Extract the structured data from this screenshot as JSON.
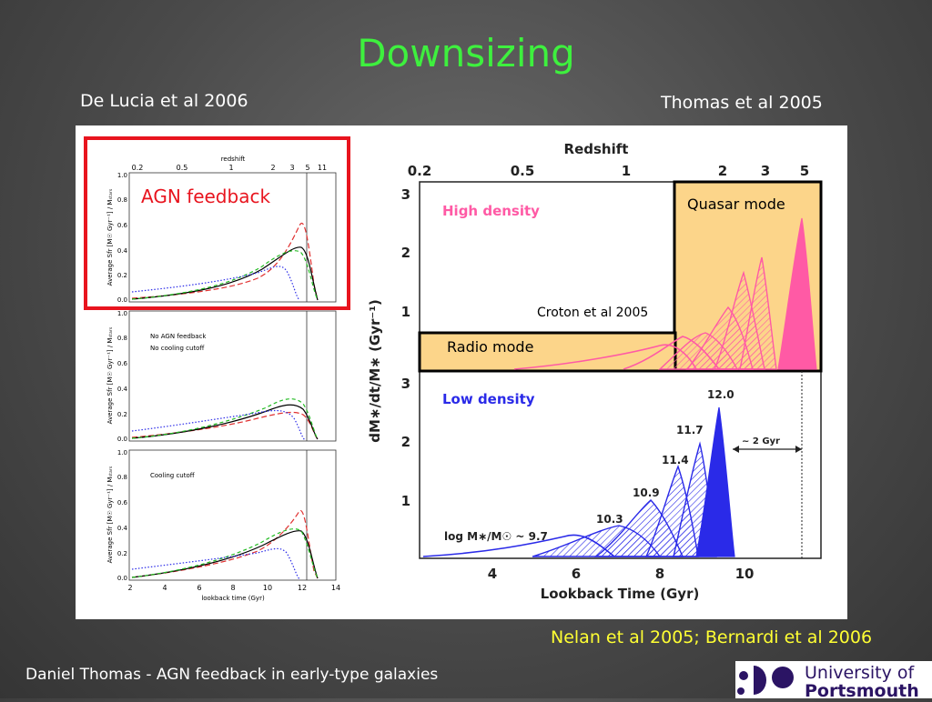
{
  "slide": {
    "title": "Downsizing",
    "left_citation": "De Lucia et al 2006",
    "right_citation": "Thomas et al 2005",
    "bottom_citation": "Nelan et al 2005; Bernardi et al 2006",
    "footer": "Daniel Thomas - AGN feedback in early-type galaxies"
  },
  "left_figure": {
    "top_axis_label": "redshift",
    "redshift_ticks": [
      "0.2",
      "0.5",
      "1",
      "2",
      "3",
      "5",
      "11"
    ],
    "y_label": "Average Sfr [M☉ Gyr⁻¹] / Mₛₜₐᵣₛ",
    "y_ticks": [
      "0.0",
      "0.2",
      "0.4",
      "0.6",
      "0.8",
      "1.0"
    ],
    "x_ticks": [
      "2",
      "4",
      "6",
      "8",
      "10",
      "12",
      "14"
    ],
    "x_label": "lookback time (Gyr)",
    "highlight_label": "AGN feedback",
    "panel2_notes": [
      "No AGN feedback",
      "No cooling cutoff"
    ],
    "panel3_notes": [
      "Cooling cutoff"
    ],
    "highlight_color": "#e8141e"
  },
  "right_figure": {
    "top_axis_label": "Redshift",
    "redshift_ticks": [
      "0.2",
      "0.5",
      "1",
      "2",
      "3",
      "5"
    ],
    "y_label": "dM∗/dt/M∗ (Gyr⁻¹)",
    "x_label": "Lookback Time (Gyr)",
    "x_ticks": [
      "4",
      "6",
      "8",
      "10"
    ],
    "y_ticks_top": [
      "1",
      "2",
      "3"
    ],
    "y_ticks_bottom": [
      "1",
      "2",
      "3"
    ],
    "high_density_label": "High density",
    "low_density_label": "Low density",
    "quasar_mode_label": "Quasar mode",
    "radio_mode_label": "Radio mode",
    "croton_label": "Croton et al 2005",
    "mass_label": "log M∗/M☉ ~ 9.7",
    "mass_labels": [
      "10.3",
      "10.9",
      "11.4",
      "11.7",
      "12.0"
    ],
    "gyr_label": "~ 2 Gyr",
    "high_density_color": "#ff5aa5",
    "low_density_color": "#2a2ae8",
    "mode_box_color": "#fcd58a"
  },
  "logo": {
    "line1": "University of",
    "line2": "Portsmouth",
    "color": "#2b1464"
  }
}
